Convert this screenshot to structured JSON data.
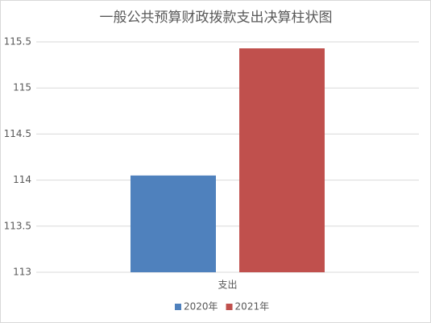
{
  "chart_data": {
    "type": "bar",
    "title": "一般公共预算财政拨款支出决算柱状图",
    "categories": [
      "支出"
    ],
    "series": [
      {
        "name": "2020年",
        "color": "#4f81bd",
        "values": [
          114.05
        ]
      },
      {
        "name": "2021年",
        "color": "#c0504d",
        "values": [
          115.43
        ]
      }
    ],
    "ylim": [
      113,
      115.5
    ],
    "yticks": [
      113,
      113.5,
      114,
      114.5,
      115,
      115.5
    ],
    "grid": true,
    "legend": "bottom"
  }
}
